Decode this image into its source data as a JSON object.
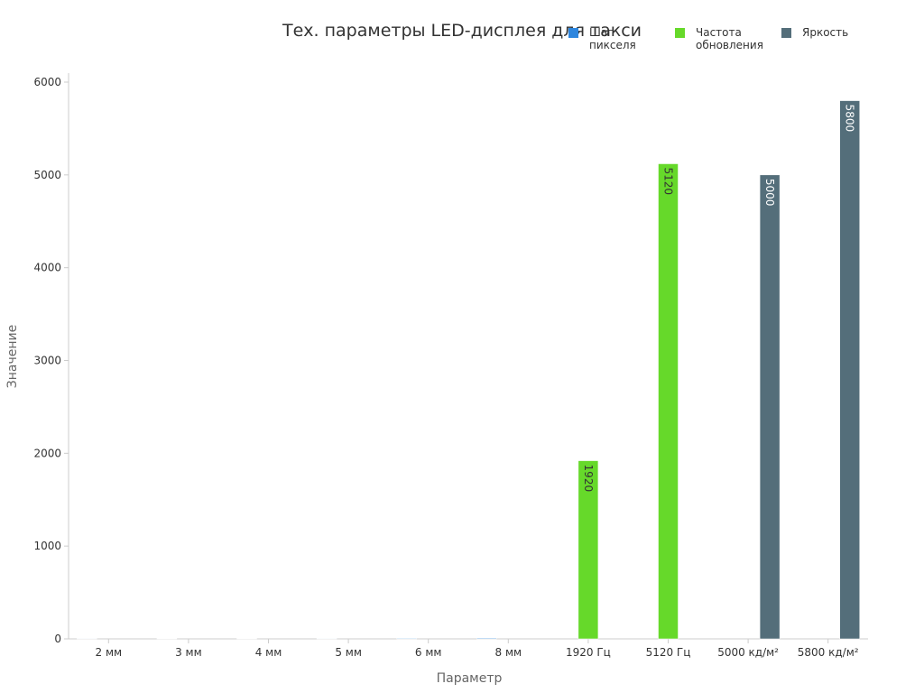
{
  "chart_data": {
    "type": "bar",
    "title": "Тех. параметры LED-дисплея для такси",
    "x_label": "Параметр",
    "y_label": "Значение",
    "categories": [
      "2 мм",
      "3 мм",
      "4 мм",
      "5 мм",
      "6 мм",
      "8 мм",
      "1920 Гц",
      "5120 Гц",
      "5000 кд/м²",
      "5800 кд/м²"
    ],
    "series": [
      {
        "name": "Шаг пикселя",
        "color": "#2e86de",
        "values": [
          2,
          3,
          4,
          5,
          6,
          8,
          null,
          null,
          null,
          null
        ]
      },
      {
        "name": "Частота обновления",
        "color": "#66d92a",
        "values": [
          null,
          null,
          null,
          null,
          null,
          null,
          1920,
          5120,
          null,
          null
        ]
      },
      {
        "name": "Яркость",
        "color": "#546e7a",
        "values": [
          null,
          null,
          null,
          null,
          null,
          null,
          null,
          null,
          5000,
          5800
        ]
      }
    ],
    "ylim": [
      0,
      6000
    ],
    "yticks": [
      0,
      1000,
      2000,
      3000,
      4000,
      5000,
      6000
    ],
    "grid": false
  }
}
